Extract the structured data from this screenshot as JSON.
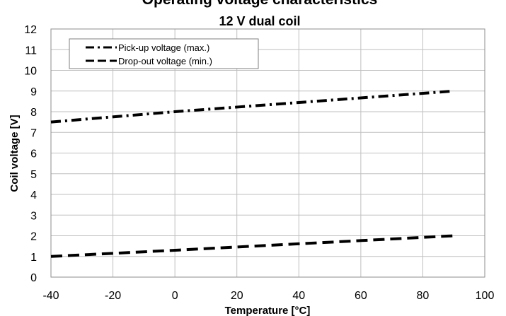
{
  "chart_data": {
    "type": "line",
    "title": "Operating voltage characteristics",
    "subtitle": "12 V dual coil",
    "xlabel": "Temperature [°C]",
    "ylabel": "Coil voltage [V]",
    "xlim": [
      -40,
      100
    ],
    "ylim": [
      0,
      12
    ],
    "xticks": [
      -40,
      -20,
      0,
      20,
      40,
      60,
      80,
      100
    ],
    "yticks": [
      0,
      1,
      2,
      3,
      4,
      5,
      6,
      7,
      8,
      9,
      10,
      11,
      12
    ],
    "grid": true,
    "legend_position": "top-left",
    "series": [
      {
        "name": "Pick-up voltage (max.)",
        "style": "dash-dot",
        "color": "#000000",
        "x": [
          -40,
          0,
          90
        ],
        "y": [
          7.5,
          8.0,
          9.0
        ]
      },
      {
        "name": "Drop-out voltage (min.)",
        "style": "dashed",
        "color": "#000000",
        "x": [
          -40,
          0,
          90
        ],
        "y": [
          1.0,
          1.3,
          2.0
        ]
      }
    ]
  }
}
